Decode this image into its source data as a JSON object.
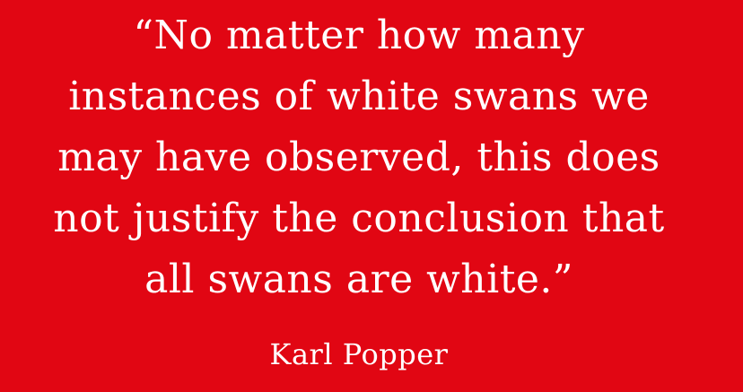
{
  "background_color": "#e10613",
  "text_color": "#ffffff",
  "quote": {
    "lines": [
      "“No matter how many",
      "instances of white swans we",
      "may have observed, this does",
      "not justify the conclusion that",
      "all swans are white.”"
    ]
  },
  "author": "Karl Popper"
}
